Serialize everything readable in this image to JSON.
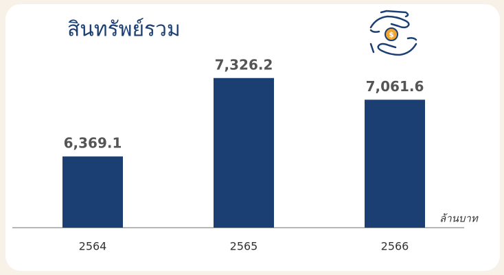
{
  "chart_data": {
    "type": "bar",
    "title": "สินทรัพย์รวม",
    "unit_label": "ล้านบาท",
    "categories": [
      "2564",
      "2565",
      "2566"
    ],
    "values": [
      6369.1,
      7326.2,
      7061.6
    ],
    "value_labels": [
      "6,369.1",
      "7,326.2",
      "7,061.6"
    ],
    "color": "#1b3f72",
    "ylim": [
      5500,
      7500
    ]
  }
}
